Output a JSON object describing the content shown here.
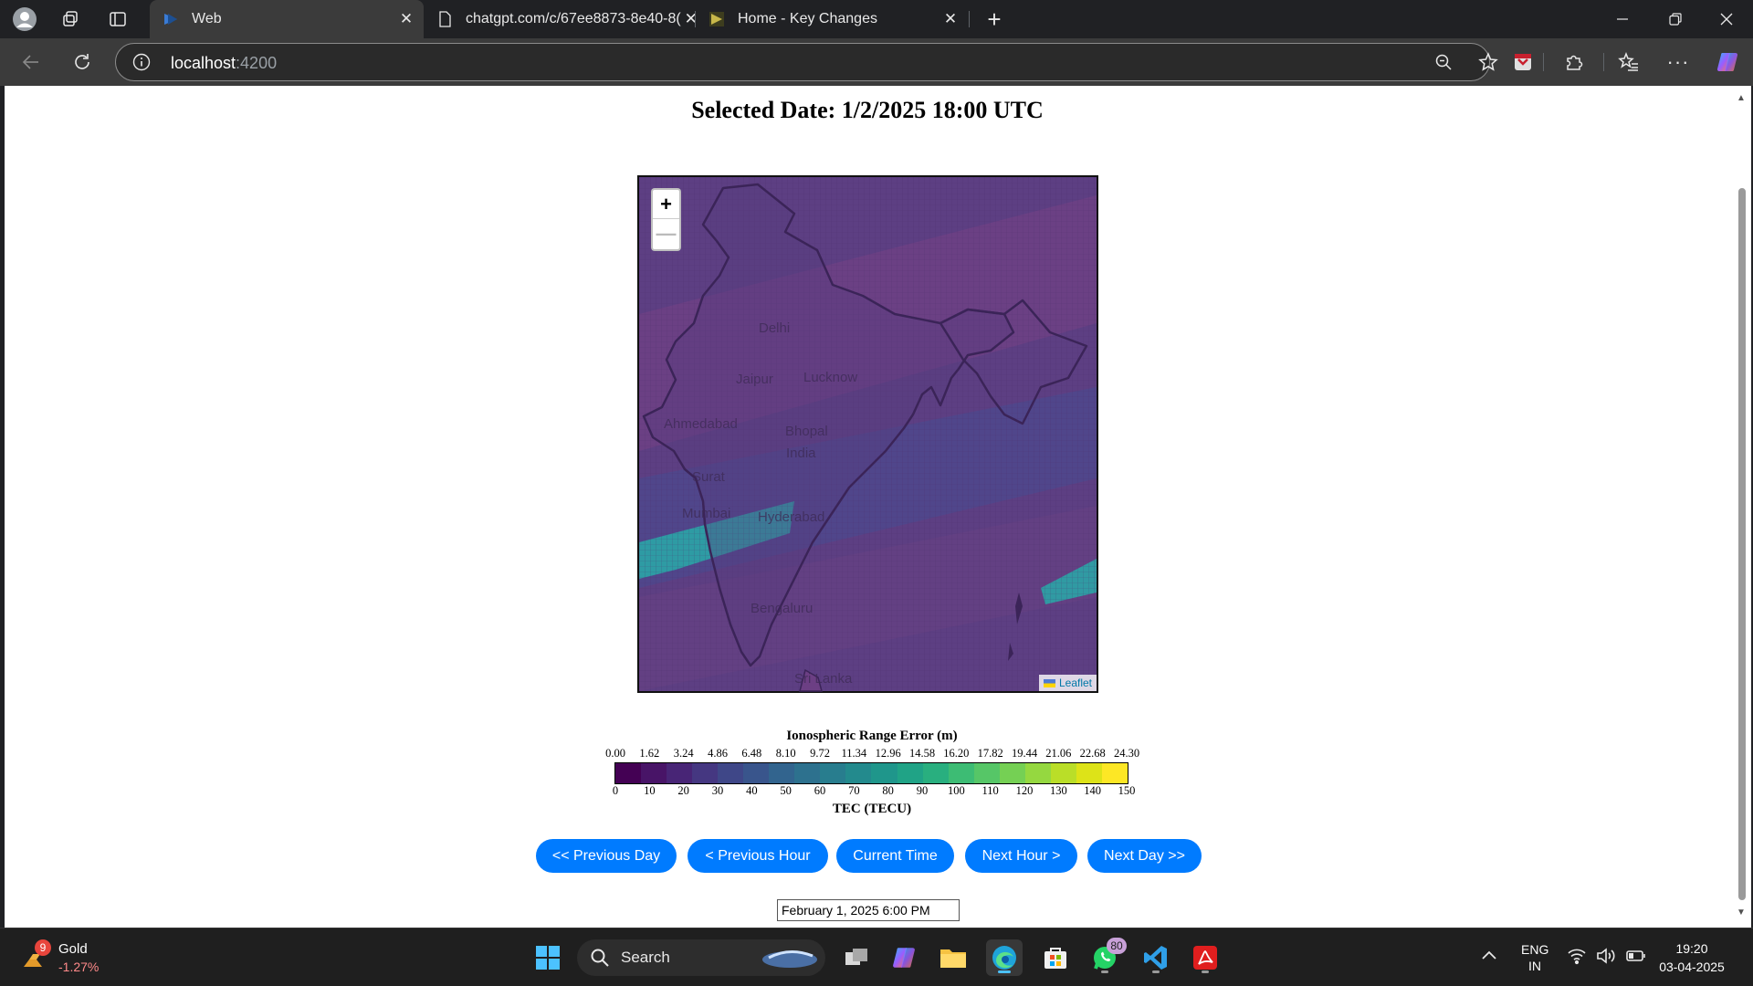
{
  "browser": {
    "tabs": [
      {
        "label": "Web",
        "active": true
      },
      {
        "label": "chatgpt.com/c/67ee8873-8e40-8(",
        "active": false
      },
      {
        "label": "Home - Key Changes",
        "active": false
      }
    ],
    "url_host": "localhost",
    "url_port": ":4200"
  },
  "page": {
    "title": "Selected Date: 1/2/2025 18:00 UTC",
    "map": {
      "zoom_in": "+",
      "zoom_out": "—",
      "attribution": "Leaflet",
      "cities": [
        "Delhi",
        "Jaipur",
        "Lucknow",
        "Ahmedabad",
        "Bhopal",
        "India",
        "Surat",
        "Mumbai",
        "Hyderabad",
        "Bengaluru",
        "Sri Lanka"
      ]
    },
    "legend": {
      "title": "Ionospheric Range Error (m)",
      "range_ticks": [
        "0.00",
        "1.62",
        "3.24",
        "4.86",
        "6.48",
        "8.10",
        "9.72",
        "11.34",
        "12.96",
        "14.58",
        "16.20",
        "17.82",
        "19.44",
        "21.06",
        "22.68",
        "24.30"
      ],
      "tec_ticks": [
        "0",
        "10",
        "20",
        "30",
        "40",
        "50",
        "60",
        "70",
        "80",
        "90",
        "100",
        "110",
        "120",
        "130",
        "140",
        "150"
      ],
      "tec_title": "TEC (TECU)",
      "colors": [
        "#440154",
        "#481467",
        "#482576",
        "#453781",
        "#3f4788",
        "#39558c",
        "#32648e",
        "#2d718e",
        "#287d8e",
        "#238a8d",
        "#1f968b",
        "#20a386",
        "#29af7f",
        "#3dbc74",
        "#56c667",
        "#75d054",
        "#95d840",
        "#bade28",
        "#dde318",
        "#fde725"
      ]
    },
    "buttons": {
      "prev_day": "<< Previous Day",
      "prev_hour": "< Previous Hour",
      "current": "Current Time",
      "next_hour": "Next Hour >",
      "next_day": "Next Day >>"
    },
    "date_input": "February 1, 2025 6:00 PM"
  },
  "taskbar": {
    "widget_name": "Gold",
    "widget_change": "-1.27%",
    "widget_badge": "9",
    "search_label": "Search",
    "whatsapp_badge": "80",
    "lang_1": "ENG",
    "lang_2": "IN",
    "time": "19:20",
    "date": "03-04-2025"
  }
}
